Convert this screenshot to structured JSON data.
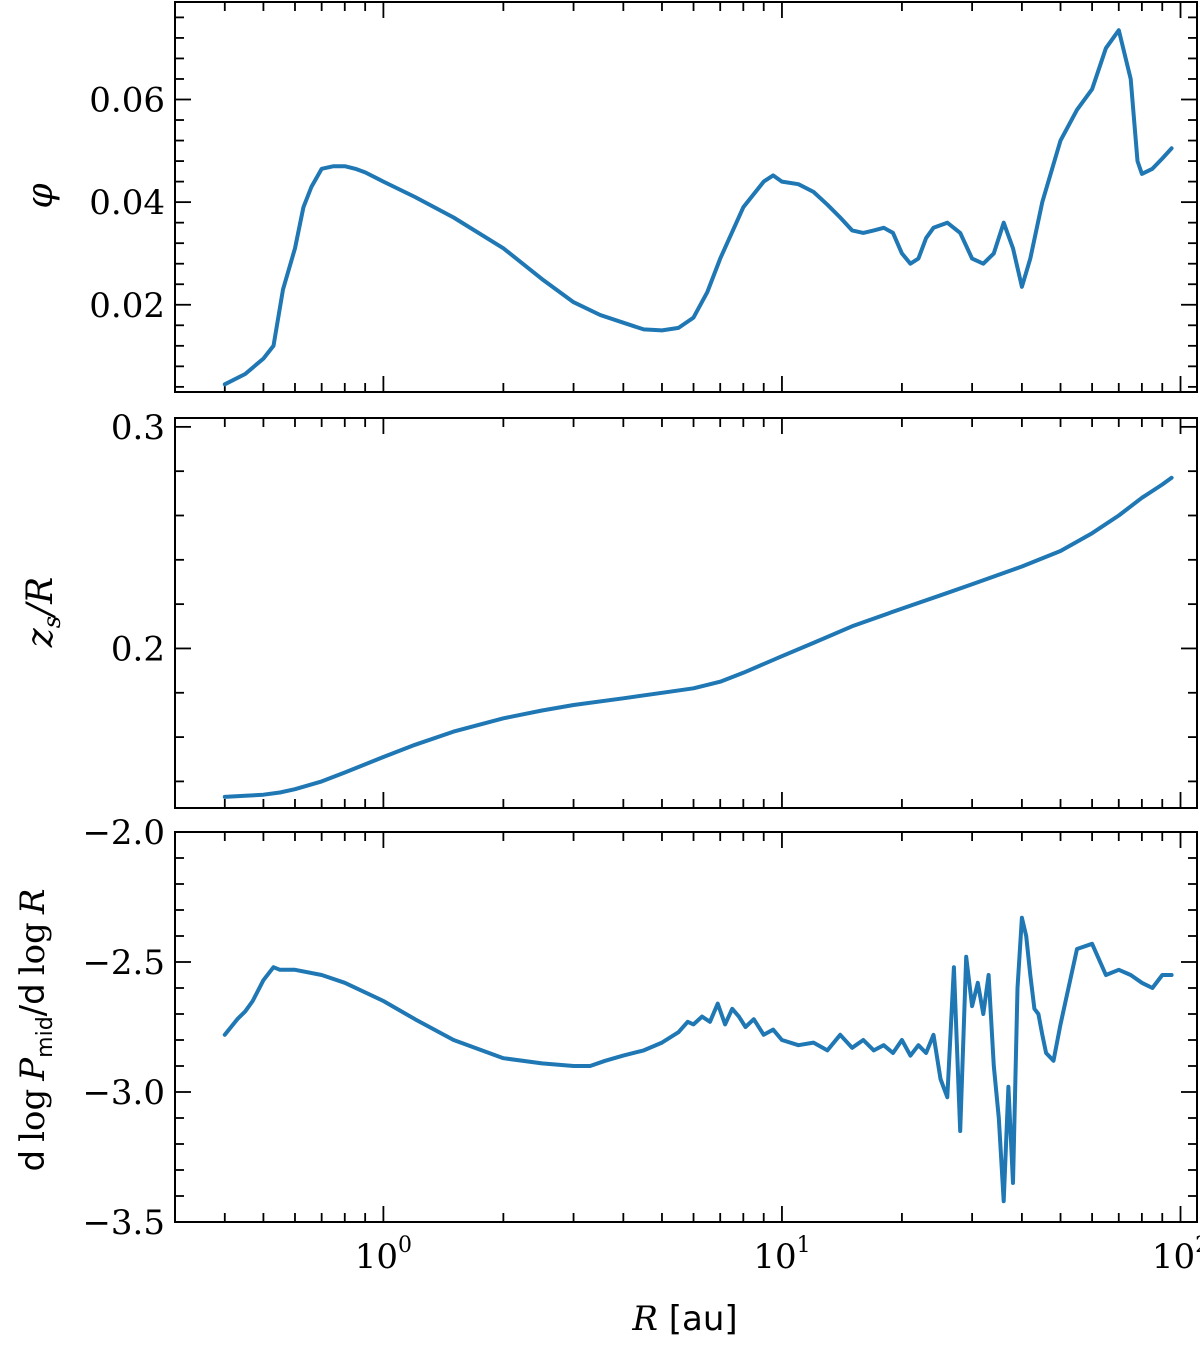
{
  "chart_data": [
    {
      "type": "line",
      "panel": "top",
      "xscale": "log",
      "xlim": [
        0.3,
        110
      ],
      "ylim": [
        0.003,
        0.079
      ],
      "ylabel": "φ",
      "yticks": [
        0.02,
        0.04,
        0.06
      ],
      "ytick_labels": [
        "0.02",
        "0.04",
        "0.06"
      ],
      "color": "#1f77b4",
      "series": [
        {
          "x": [
            0.4,
            0.45,
            0.5,
            0.53,
            0.56,
            0.6,
            0.63,
            0.66,
            0.7,
            0.75,
            0.8,
            0.85,
            0.9,
            1.0,
            1.2,
            1.5,
            2.0,
            2.5,
            3.0,
            3.5,
            4.0,
            4.5,
            5.0,
            5.5,
            6.0,
            6.5,
            7.0,
            8.0,
            9.0,
            9.5,
            10.0,
            11.0,
            12.0,
            13.0,
            14.0,
            15.0,
            16.0,
            17.0,
            18.0,
            19.0,
            20.0,
            21.0,
            22.0,
            23.0,
            24.0,
            26.0,
            28.0,
            30.0,
            32.0,
            34.0,
            36.0,
            38.0,
            40.0,
            42.0,
            45.0,
            50.0,
            55.0,
            60.0,
            65.0,
            70.0,
            75.0,
            78.0,
            80.0,
            85.0,
            90.0,
            95.0
          ],
          "y": [
            0.0045,
            0.0065,
            0.0095,
            0.012,
            0.023,
            0.031,
            0.039,
            0.043,
            0.0465,
            0.047,
            0.047,
            0.0465,
            0.0458,
            0.044,
            0.041,
            0.037,
            0.031,
            0.025,
            0.0205,
            0.018,
            0.0165,
            0.0152,
            0.015,
            0.0155,
            0.0175,
            0.0225,
            0.029,
            0.039,
            0.044,
            0.0452,
            0.044,
            0.0435,
            0.042,
            0.0395,
            0.037,
            0.0345,
            0.034,
            0.0345,
            0.035,
            0.034,
            0.03,
            0.028,
            0.029,
            0.033,
            0.035,
            0.036,
            0.034,
            0.029,
            0.028,
            0.03,
            0.036,
            0.031,
            0.0235,
            0.029,
            0.04,
            0.052,
            0.058,
            0.062,
            0.07,
            0.0735,
            0.064,
            0.048,
            0.0455,
            0.0465,
            0.0485,
            0.0505
          ]
        }
      ]
    },
    {
      "type": "line",
      "panel": "middle",
      "xscale": "log",
      "xlim": [
        0.3,
        110
      ],
      "ylim": [
        0.128,
        0.304
      ],
      "ylabel_main": "z",
      "ylabel_sub": "s",
      "ylabel_tail": "/R",
      "yticks": [
        0.2,
        0.3
      ],
      "ytick_labels": [
        "0.2",
        "0.3"
      ],
      "color": "#1f77b4",
      "series": [
        {
          "x": [
            0.4,
            0.45,
            0.5,
            0.55,
            0.6,
            0.7,
            0.8,
            1.0,
            1.2,
            1.5,
            2.0,
            2.5,
            3.0,
            4.0,
            5.0,
            6.0,
            7.0,
            8.0,
            10.0,
            12.0,
            15.0,
            20.0,
            25.0,
            30.0,
            40.0,
            50.0,
            60.0,
            70.0,
            80.0,
            90.0,
            95.0
          ],
          "y": [
            0.133,
            0.1335,
            0.134,
            0.135,
            0.1365,
            0.14,
            0.144,
            0.151,
            0.1565,
            0.1625,
            0.1685,
            0.172,
            0.1745,
            0.1775,
            0.18,
            0.182,
            0.185,
            0.189,
            0.1965,
            0.2025,
            0.21,
            0.218,
            0.224,
            0.229,
            0.237,
            0.244,
            0.252,
            0.26,
            0.268,
            0.274,
            0.277
          ]
        }
      ]
    },
    {
      "type": "line",
      "panel": "bottom",
      "xscale": "log",
      "xlim": [
        0.3,
        110
      ],
      "ylim": [
        -3.5,
        -2.0
      ],
      "xlabel_main": "R",
      "xlabel_unit": " [au]",
      "ylabel_d1": "d",
      "ylabel_log1": "log",
      "ylabel_P": "P",
      "ylabel_sub": "mid",
      "ylabel_d2": "/d",
      "ylabel_log2": "log",
      "ylabel_R": "R",
      "yticks": [
        -3.5,
        -3.0,
        -2.5,
        -2.0
      ],
      "ytick_labels": [
        "−3.5",
        "−3.0",
        "−2.5",
        "−2.0"
      ],
      "xtick_base": "10",
      "xtick_exponents": [
        "0",
        "1",
        "2"
      ],
      "color": "#1f77b4",
      "series": [
        {
          "x": [
            0.4,
            0.43,
            0.45,
            0.47,
            0.5,
            0.53,
            0.55,
            0.6,
            0.7,
            0.8,
            1.0,
            1.2,
            1.5,
            2.0,
            2.5,
            3.0,
            3.3,
            3.6,
            4.0,
            4.5,
            5.0,
            5.5,
            5.8,
            6.0,
            6.3,
            6.6,
            6.9,
            7.2,
            7.5,
            7.8,
            8.1,
            8.5,
            9.0,
            9.5,
            10.0,
            11.0,
            12.0,
            13.0,
            14.0,
            15.0,
            16.0,
            17.0,
            18.0,
            19.0,
            20.0,
            21.0,
            22.0,
            23.0,
            24.0,
            25.0,
            26.0,
            27.0,
            28.0,
            29.0,
            30.0,
            31.0,
            32.0,
            33.0,
            34.0,
            35.0,
            36.0,
            37.0,
            38.0,
            39.0,
            40.0,
            41.0,
            42.0,
            43.0,
            44.0,
            45.0,
            46.0,
            48.0,
            50.0,
            55.0,
            60.0,
            65.0,
            70.0,
            75.0,
            80.0,
            85.0,
            90.0,
            95.0
          ],
          "y": [
            -2.78,
            -2.72,
            -2.69,
            -2.65,
            -2.57,
            -2.52,
            -2.53,
            -2.53,
            -2.55,
            -2.58,
            -2.65,
            -2.72,
            -2.8,
            -2.87,
            -2.89,
            -2.9,
            -2.9,
            -2.88,
            -2.86,
            -2.84,
            -2.81,
            -2.77,
            -2.73,
            -2.74,
            -2.71,
            -2.73,
            -2.66,
            -2.74,
            -2.68,
            -2.71,
            -2.75,
            -2.72,
            -2.78,
            -2.76,
            -2.8,
            -2.82,
            -2.81,
            -2.84,
            -2.78,
            -2.83,
            -2.8,
            -2.84,
            -2.82,
            -2.85,
            -2.8,
            -2.86,
            -2.82,
            -2.85,
            -2.78,
            -2.95,
            -3.02,
            -2.52,
            -3.15,
            -2.48,
            -2.67,
            -2.58,
            -2.7,
            -2.55,
            -2.9,
            -3.1,
            -3.42,
            -2.98,
            -3.35,
            -2.6,
            -2.33,
            -2.4,
            -2.55,
            -2.68,
            -2.7,
            -2.78,
            -2.85,
            -2.88,
            -2.74,
            -2.45,
            -2.43,
            -2.55,
            -2.53,
            -2.55,
            -2.58,
            -2.6,
            -2.55,
            -2.55
          ]
        }
      ]
    }
  ]
}
